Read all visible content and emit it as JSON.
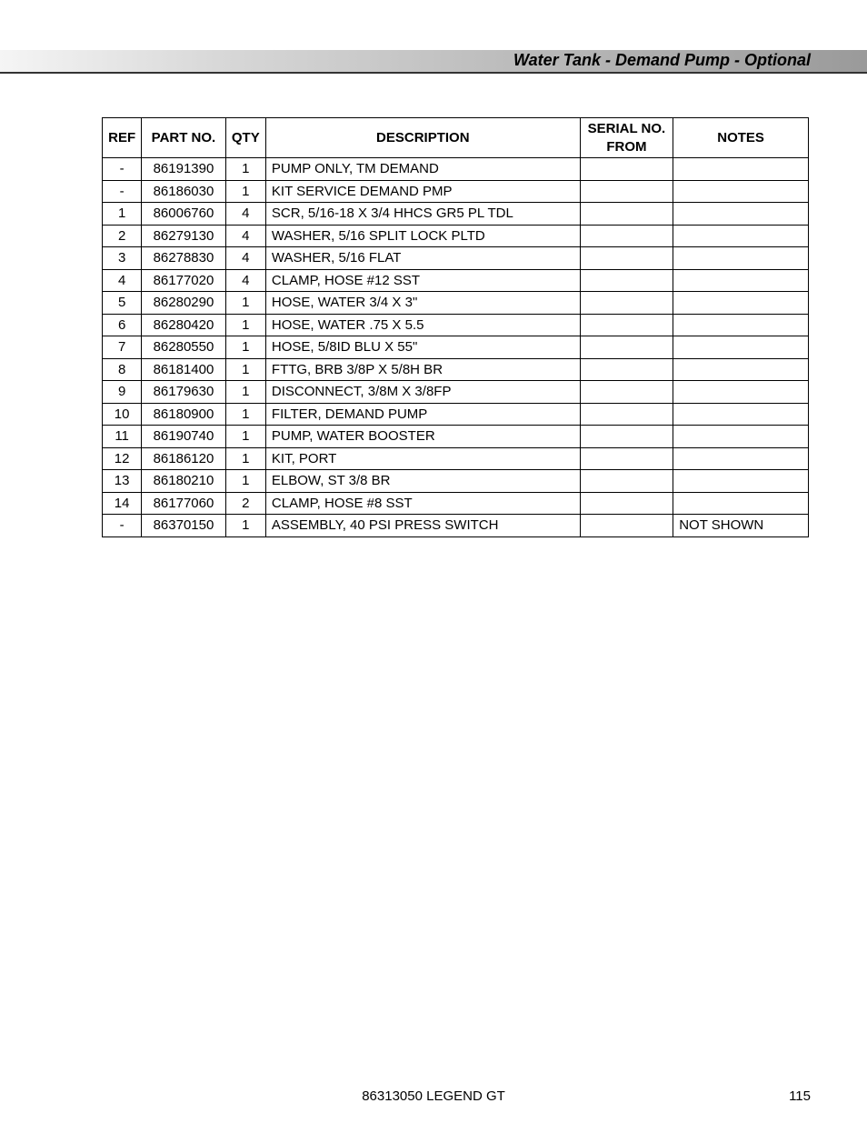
{
  "header": {
    "title": "Water Tank - Demand Pump - Optional"
  },
  "table": {
    "columns": {
      "ref": "REF",
      "part_no": "PART NO.",
      "qty": "QTY",
      "description": "DESCRIPTION",
      "serial_no_from": "SERIAL NO. FROM",
      "notes": "NOTES"
    },
    "rows": [
      {
        "ref": "-",
        "part_no": "86191390",
        "qty": "1",
        "description": "PUMP ONLY, TM DEMAND",
        "serial": "",
        "notes": ""
      },
      {
        "ref": "-",
        "part_no": "86186030",
        "qty": "1",
        "description": "KIT SERVICE DEMAND PMP",
        "serial": "",
        "notes": ""
      },
      {
        "ref": "1",
        "part_no": "86006760",
        "qty": "4",
        "description": "SCR, 5/16-18 X 3/4 HHCS GR5 PL TDL",
        "serial": "",
        "notes": ""
      },
      {
        "ref": "2",
        "part_no": "86279130",
        "qty": "4",
        "description": "WASHER, 5/16 SPLIT LOCK PLTD",
        "serial": "",
        "notes": ""
      },
      {
        "ref": "3",
        "part_no": "86278830",
        "qty": "4",
        "description": "WASHER, 5/16 FLAT",
        "serial": "",
        "notes": ""
      },
      {
        "ref": "4",
        "part_no": "86177020",
        "qty": "4",
        "description": "CLAMP, HOSE #12 SST",
        "serial": "",
        "notes": ""
      },
      {
        "ref": "5",
        "part_no": "86280290",
        "qty": "1",
        "description": "HOSE, WATER 3/4 X 3\"",
        "serial": "",
        "notes": ""
      },
      {
        "ref": "6",
        "part_no": "86280420",
        "qty": "1",
        "description": "HOSE, WATER .75 X 5.5",
        "serial": "",
        "notes": ""
      },
      {
        "ref": "7",
        "part_no": "86280550",
        "qty": "1",
        "description": "HOSE, 5/8ID BLU X 55\"",
        "serial": "",
        "notes": ""
      },
      {
        "ref": "8",
        "part_no": "86181400",
        "qty": "1",
        "description": "FTTG, BRB 3/8P X 5/8H BR",
        "serial": "",
        "notes": ""
      },
      {
        "ref": "9",
        "part_no": "86179630",
        "qty": "1",
        "description": "DISCONNECT, 3/8M X 3/8FP",
        "serial": "",
        "notes": ""
      },
      {
        "ref": "10",
        "part_no": "86180900",
        "qty": "1",
        "description": "FILTER, DEMAND PUMP",
        "serial": "",
        "notes": ""
      },
      {
        "ref": "11",
        "part_no": "86190740",
        "qty": "1",
        "description": "PUMP, WATER BOOSTER",
        "serial": "",
        "notes": ""
      },
      {
        "ref": "12",
        "part_no": "86186120",
        "qty": "1",
        "description": "KIT, PORT",
        "serial": "",
        "notes": ""
      },
      {
        "ref": "13",
        "part_no": "86180210",
        "qty": "1",
        "description": "ELBOW, ST 3/8 BR",
        "serial": "",
        "notes": ""
      },
      {
        "ref": "14",
        "part_no": "86177060",
        "qty": "2",
        "description": "CLAMP, HOSE #8 SST",
        "serial": "",
        "notes": ""
      },
      {
        "ref": "-",
        "part_no": "86370150",
        "qty": "1",
        "description": "ASSEMBLY, 40 PSI PRESS SWITCH",
        "serial": "",
        "notes": "NOT SHOWN"
      }
    ]
  },
  "footer": {
    "doc_label": "86313050  LEGEND GT",
    "page_number": "115"
  }
}
